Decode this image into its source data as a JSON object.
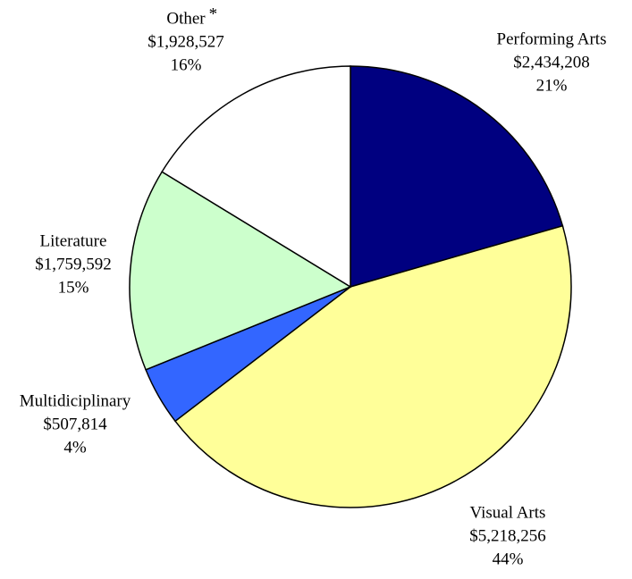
{
  "chart_data": {
    "type": "pie",
    "categories": [
      "Performing Arts",
      "Visual Arts",
      "Multidiciplinary",
      "Literature",
      "Other"
    ],
    "values": [
      2434208,
      5218256,
      507814,
      1759592,
      1928527
    ],
    "value_labels": [
      "$2,434,208",
      "$5,218,256",
      "$507,814",
      "$1,759,592",
      "$1,928,527"
    ],
    "percentages": [
      21,
      44,
      4,
      15,
      16
    ],
    "percentage_labels": [
      "21%",
      "44%",
      "4%",
      "15%",
      "16%"
    ],
    "colors": [
      "#000080",
      "#ffff99",
      "#3366ff",
      "#ccffcc",
      "#ffffff"
    ],
    "annotation": "*"
  }
}
